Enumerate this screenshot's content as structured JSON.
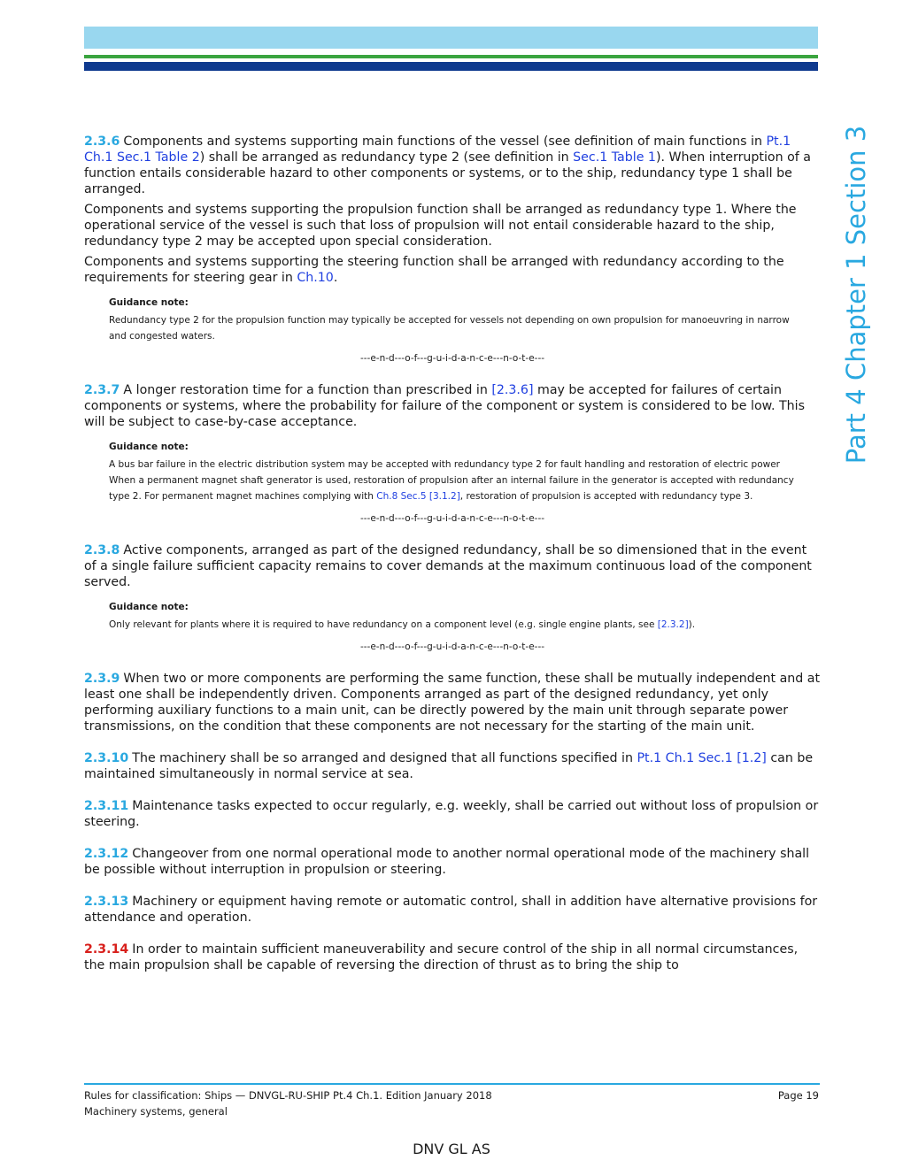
{
  "side_title": "Part 4 Chapter 1 Section 3",
  "sections": [
    {
      "number": "2.3.6",
      "paragraphs": [
        [
          {
            "t": "Components and systems supporting main functions of the vessel (see definition of main functions in "
          },
          {
            "link": "Pt.1 Ch.1 Sec.1 Table 2"
          },
          {
            "t": ") shall be arranged as redundancy type 2 (see definition in "
          },
          {
            "link": "Sec.1 Table 1"
          },
          {
            "t": "). When interruption of a function entails considerable hazard to other components or systems, or to the ship, redundancy type 1 shall be arranged."
          }
        ],
        [
          {
            "t": "Components and systems supporting the propulsion function shall be arranged as redundancy type 1. Where the operational service of the vessel is such that loss of propulsion will not entail considerable hazard to the ship, redundancy type 2 may be accepted upon special consideration."
          }
        ],
        [
          {
            "t": "Components and systems supporting the steering function shall be arranged with redundancy according to the requirements for steering gear in "
          },
          {
            "link": "Ch.10"
          },
          {
            "t": "."
          }
        ]
      ],
      "guidance": {
        "label": "Guidance note:",
        "paragraphs": [
          [
            {
              "t": "Redundancy type 2 for the propulsion function may typically be accepted for vessels not depending on own propulsion for manoeuvring in narrow and congested waters."
            }
          ]
        ],
        "end": "---e-n-d---o-f---g-u-i-d-a-n-c-e---n-o-t-e---"
      }
    },
    {
      "number": "2.3.7",
      "paragraphs": [
        [
          {
            "t": "A longer restoration time for a function than prescribed in "
          },
          {
            "link": "[2.3.6]"
          },
          {
            "t": " may be accepted for failures of certain components or systems, where the probability for failure of the component or system is considered to be low. This will be subject to case-by-case acceptance."
          }
        ]
      ],
      "guidance": {
        "label": "Guidance note:",
        "paragraphs": [
          [
            {
              "t": "A bus bar failure in the electric distribution system may be accepted with redundancy type 2 for fault handling and restoration of electric power"
            }
          ],
          [
            {
              "t": "When a permanent magnet shaft generator is used, restoration of propulsion after an internal failure in the generator is accepted with redundancy type 2. For permanent magnet machines complying with "
            },
            {
              "link": "Ch.8 Sec.5 [3.1.2]"
            },
            {
              "t": ", restoration of propulsion is accepted with redundancy type 3."
            }
          ]
        ],
        "end": "---e-n-d---o-f---g-u-i-d-a-n-c-e---n-o-t-e---"
      }
    },
    {
      "number": "2.3.8",
      "paragraphs": [
        [
          {
            "t": "Active components, arranged as part of the designed redundancy, shall be so dimensioned that in the event of a single failure sufficient capacity remains to cover demands at the maximum continuous load of the component served."
          }
        ]
      ],
      "guidance": {
        "label": "Guidance note:",
        "paragraphs": [
          [
            {
              "t": "Only relevant for plants where it is required to have redundancy on a component level (e.g. single engine plants, see "
            },
            {
              "link": "[2.3.2]"
            },
            {
              "t": ")."
            }
          ]
        ],
        "end": "---e-n-d---o-f---g-u-i-d-a-n-c-e---n-o-t-e---"
      }
    },
    {
      "number": "2.3.9",
      "paragraphs": [
        [
          {
            "t": "When two or more components are performing the same function, these shall be mutually independent and at least one shall be independently driven. Components arranged as part of the designed redundancy, yet only performing auxiliary functions to a main unit, can be directly powered by the main unit through separate power transmissions, on the condition that these components are not necessary for the starting of the main unit."
          }
        ]
      ]
    },
    {
      "number": "2.3.10",
      "paragraphs": [
        [
          {
            "t": "The machinery shall be so arranged and designed that all functions specified in "
          },
          {
            "link": "Pt.1 Ch.1 Sec.1 [1.2]"
          },
          {
            "t": " can be maintained simultaneously in normal service at sea."
          }
        ]
      ]
    },
    {
      "number": "2.3.11",
      "paragraphs": [
        [
          {
            "t": "Maintenance tasks expected to occur regularly, e.g. weekly, shall be carried out without loss of propulsion or steering."
          }
        ]
      ]
    },
    {
      "number": "2.3.12",
      "paragraphs": [
        [
          {
            "t": "Changeover from one normal operational mode to another normal operational mode of the machinery shall be possible without interruption in propulsion or steering."
          }
        ]
      ]
    },
    {
      "number": "2.3.13",
      "paragraphs": [
        [
          {
            "t": "Machinery or equipment having remote or automatic control, shall in addition have alternative provisions for attendance and operation."
          }
        ]
      ]
    },
    {
      "number": "2.3.14",
      "color": "#d8201c",
      "paragraphs": [
        [
          {
            "t": "In order to maintain sufficient maneuverability and secure control of the ship in all normal circumstances, the main propulsion shall be capable of reversing the direction of thrust as to bring the ship to"
          }
        ]
      ]
    }
  ],
  "footer": {
    "line1": "Rules for classification: Ships — DNVGL-RU-SHIP Pt.4 Ch.1. Edition January 2018",
    "page": "Page 19",
    "line2": "Machinery systems, general",
    "company": "DNV GL AS"
  }
}
